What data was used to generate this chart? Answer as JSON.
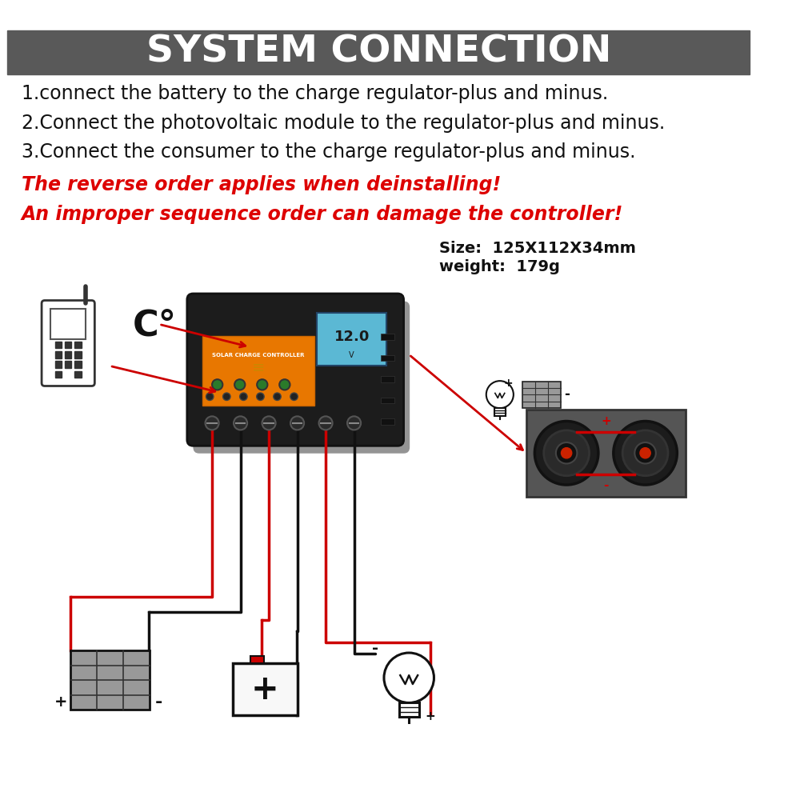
{
  "title": "SYSTEM CONNECTION",
  "title_bg": "#595959",
  "title_color": "#ffffff",
  "bg_color": "#ffffff",
  "instruction1": "1.connect the battery to the charge regulator-plus and minus.",
  "instruction2": "2.Connect the photovoltaic module to the regulator-plus and minus.",
  "instruction3": "3.Connect the consumer to the charge regulator-plus and minus.",
  "warning1": "The reverse order applies when deinstalling!",
  "warning2": "An improper sequence order can damage the controller!",
  "warning_color": "#dd0000",
  "size_text": "Size:  125X112X34mm",
  "weight_text": "weight:  179g",
  "spec_color": "#111111",
  "instr_color": "#111111",
  "instr_fontsize": 17,
  "warn_fontsize": 17,
  "title_fontsize": 34,
  "wire_red": "#cc0000",
  "wire_black": "#111111",
  "panel_bg": "#666666"
}
